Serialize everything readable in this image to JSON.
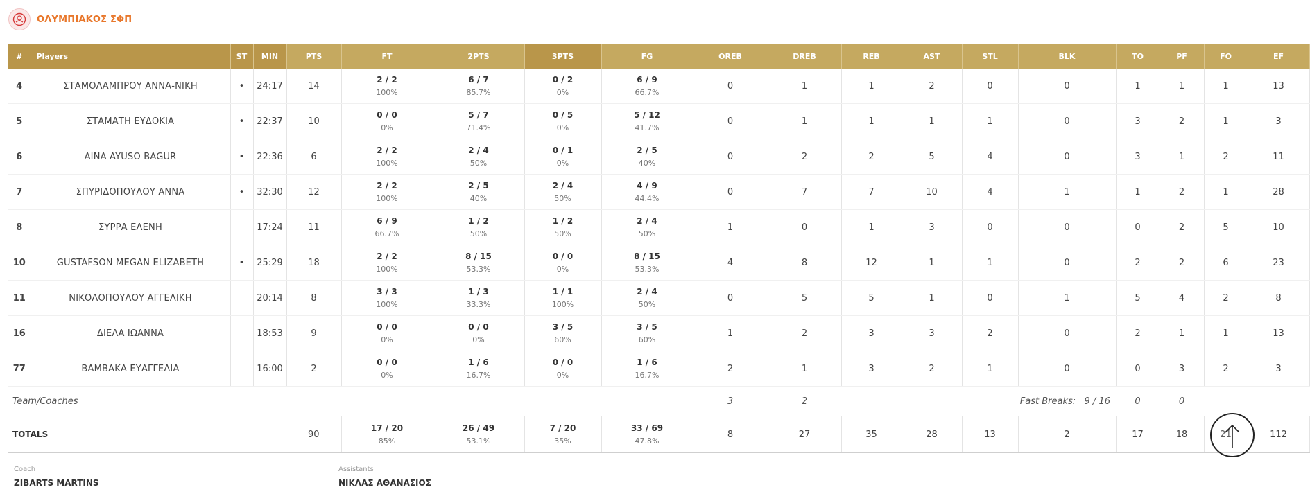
{
  "team": {
    "name": "ΟΛΥΜΠΙΑΚΟΣ ΣΦΠ",
    "logo_icon": "olympiacos-crest-icon"
  },
  "headers": [
    "#",
    "Players",
    "ST",
    "MIN",
    "PTS",
    "FT",
    "2PTS",
    "3PTS",
    "FG",
    "OREB",
    "DREB",
    "REB",
    "AST",
    "STL",
    "BLK",
    "TO",
    "PF",
    "FO",
    "EF"
  ],
  "players": [
    {
      "num": "4",
      "name": "ΣΤΑΜΟΛΑΜΠΡΟΥ ΑΝΝΑ-ΝΙΚΗ",
      "st": "•",
      "min": "24:17",
      "pts": "14",
      "ft": "2 / 2",
      "ft_pct": "100%",
      "p2": "6 / 7",
      "p2_pct": "85.7%",
      "p3": "0 / 2",
      "p3_pct": "0%",
      "fg": "6 / 9",
      "fg_pct": "66.7%",
      "oreb": "0",
      "dreb": "1",
      "reb": "1",
      "ast": "2",
      "stl": "0",
      "blk": "0",
      "to": "1",
      "pf": "1",
      "fo": "1",
      "ef": "13"
    },
    {
      "num": "5",
      "name": "ΣΤΑΜΑΤΗ ΕΥΔΟΚΙΑ",
      "st": "•",
      "min": "22:37",
      "pts": "10",
      "ft": "0 / 0",
      "ft_pct": "0%",
      "p2": "5 / 7",
      "p2_pct": "71.4%",
      "p3": "0 / 5",
      "p3_pct": "0%",
      "fg": "5 / 12",
      "fg_pct": "41.7%",
      "oreb": "0",
      "dreb": "1",
      "reb": "1",
      "ast": "1",
      "stl": "1",
      "blk": "0",
      "to": "3",
      "pf": "2",
      "fo": "1",
      "ef": "3"
    },
    {
      "num": "6",
      "name": "AINA AYUSO BAGUR",
      "st": "•",
      "min": "22:36",
      "pts": "6",
      "ft": "2 / 2",
      "ft_pct": "100%",
      "p2": "2 / 4",
      "p2_pct": "50%",
      "p3": "0 / 1",
      "p3_pct": "0%",
      "fg": "2 / 5",
      "fg_pct": "40%",
      "oreb": "0",
      "dreb": "2",
      "reb": "2",
      "ast": "5",
      "stl": "4",
      "blk": "0",
      "to": "3",
      "pf": "1",
      "fo": "2",
      "ef": "11"
    },
    {
      "num": "7",
      "name": "ΣΠΥΡΙΔΟΠΟΥΛΟΥ ΑΝΝΑ",
      "st": "•",
      "min": "32:30",
      "pts": "12",
      "ft": "2 / 2",
      "ft_pct": "100%",
      "p2": "2 / 5",
      "p2_pct": "40%",
      "p3": "2 / 4",
      "p3_pct": "50%",
      "fg": "4 / 9",
      "fg_pct": "44.4%",
      "oreb": "0",
      "dreb": "7",
      "reb": "7",
      "ast": "10",
      "stl": "4",
      "blk": "1",
      "to": "1",
      "pf": "2",
      "fo": "1",
      "ef": "28"
    },
    {
      "num": "8",
      "name": "ΣΥΡΡΑ ΕΛΕΝΗ",
      "st": "",
      "min": "17:24",
      "pts": "11",
      "ft": "6 / 9",
      "ft_pct": "66.7%",
      "p2": "1 / 2",
      "p2_pct": "50%",
      "p3": "1 / 2",
      "p3_pct": "50%",
      "fg": "2 / 4",
      "fg_pct": "50%",
      "oreb": "1",
      "dreb": "0",
      "reb": "1",
      "ast": "3",
      "stl": "0",
      "blk": "0",
      "to": "0",
      "pf": "2",
      "fo": "5",
      "ef": "10"
    },
    {
      "num": "10",
      "name": "GUSTAFSON MEGAN ELIZABETH",
      "st": "•",
      "min": "25:29",
      "pts": "18",
      "ft": "2 / 2",
      "ft_pct": "100%",
      "p2": "8 / 15",
      "p2_pct": "53.3%",
      "p3": "0 / 0",
      "p3_pct": "0%",
      "fg": "8 / 15",
      "fg_pct": "53.3%",
      "oreb": "4",
      "dreb": "8",
      "reb": "12",
      "ast": "1",
      "stl": "1",
      "blk": "0",
      "to": "2",
      "pf": "2",
      "fo": "6",
      "ef": "23"
    },
    {
      "num": "11",
      "name": "ΝΙΚΟΛΟΠΟΥΛΟΥ ΑΓΓΕΛΙΚΗ",
      "st": "",
      "min": "20:14",
      "pts": "8",
      "ft": "3 / 3",
      "ft_pct": "100%",
      "p2": "1 / 3",
      "p2_pct": "33.3%",
      "p3": "1 / 1",
      "p3_pct": "100%",
      "fg": "2 / 4",
      "fg_pct": "50%",
      "oreb": "0",
      "dreb": "5",
      "reb": "5",
      "ast": "1",
      "stl": "0",
      "blk": "1",
      "to": "5",
      "pf": "4",
      "fo": "2",
      "ef": "8"
    },
    {
      "num": "16",
      "name": "ΔΙΕΛΑ ΙΩΑΝΝΑ",
      "st": "",
      "min": "18:53",
      "pts": "9",
      "ft": "0 / 0",
      "ft_pct": "0%",
      "p2": "0 / 0",
      "p2_pct": "0%",
      "p3": "3 / 5",
      "p3_pct": "60%",
      "fg": "3 / 5",
      "fg_pct": "60%",
      "oreb": "1",
      "dreb": "2",
      "reb": "3",
      "ast": "3",
      "stl": "2",
      "blk": "0",
      "to": "2",
      "pf": "1",
      "fo": "1",
      "ef": "13"
    },
    {
      "num": "77",
      "name": "ΒΑΜΒΑΚΑ ΕΥΑΓΓΕΛΙΑ",
      "st": "",
      "min": "16:00",
      "pts": "2",
      "ft": "0 / 0",
      "ft_pct": "0%",
      "p2": "1 / 6",
      "p2_pct": "16.7%",
      "p3": "0 / 0",
      "p3_pct": "0%",
      "fg": "1 / 6",
      "fg_pct": "16.7%",
      "oreb": "2",
      "dreb": "1",
      "reb": "3",
      "ast": "2",
      "stl": "1",
      "blk": "0",
      "to": "0",
      "pf": "3",
      "fo": "2",
      "ef": "3"
    }
  ],
  "team_coaches": {
    "label": "Team/Coaches",
    "oreb": "3",
    "dreb": "2",
    "fast_breaks_label": "Fast Breaks:",
    "fast_breaks_value": "9 / 16",
    "to": "0",
    "pf": "0"
  },
  "totals": {
    "label": "TOTALS",
    "pts": "90",
    "ft": "17 / 20",
    "ft_pct": "85%",
    "p2": "26 / 49",
    "p2_pct": "53.1%",
    "p3": "7 / 20",
    "p3_pct": "35%",
    "fg": "33 / 69",
    "fg_pct": "47.8%",
    "oreb": "8",
    "dreb": "27",
    "reb": "35",
    "ast": "28",
    "stl": "13",
    "blk": "2",
    "to": "17",
    "pf": "18",
    "fo": "21",
    "ef": "112"
  },
  "coach": {
    "label": "Coach",
    "name": "ZIBARTS MARTINS"
  },
  "assistants": {
    "label": "Assistants",
    "name": "ΝΙΚΛΑΣ ΑΘΑΝΑΣΙΟΣ"
  },
  "scroll_top": {
    "icon": "arrow-up-icon"
  }
}
